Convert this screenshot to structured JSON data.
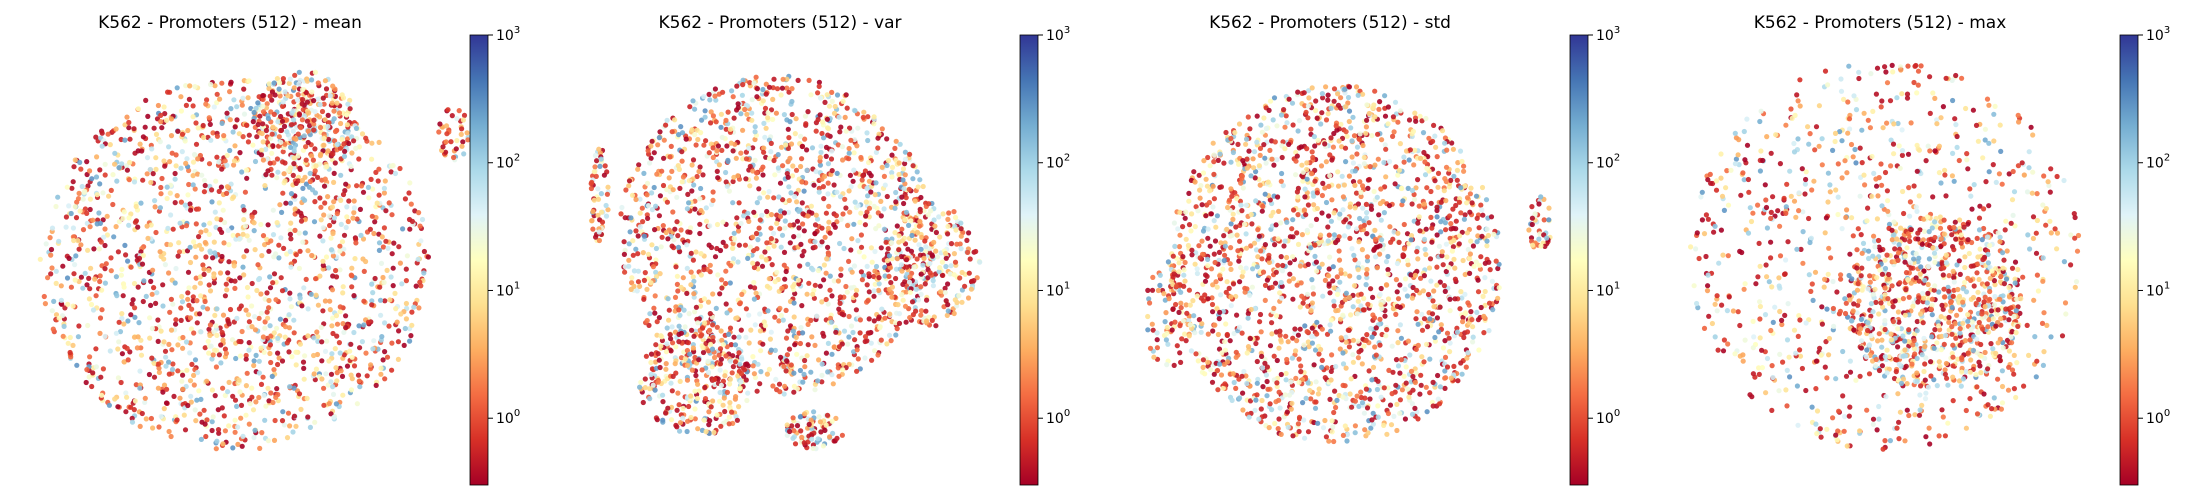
{
  "chart_data": [
    {
      "type": "scatter",
      "title": "K562 - Promoters (512) - mean",
      "colorbar": {
        "scale": "log",
        "colormap": "RdYlBu",
        "range": [
          0.3,
          1000
        ],
        "ticks": [
          {
            "value": 1,
            "base": "10",
            "exp": "0"
          },
          {
            "value": 10,
            "base": "10",
            "exp": "1"
          },
          {
            "value": 100,
            "base": "10",
            "exp": "2"
          },
          {
            "value": 1000,
            "base": "10",
            "exp": "3"
          }
        ]
      },
      "clusters": [
        {
          "cx": 0.0,
          "cy": 0.05,
          "rx": 1.0,
          "ry": 0.95,
          "count": 1700
        },
        {
          "cx": 0.35,
          "cy": -0.65,
          "rx": 0.28,
          "ry": 0.3,
          "count": 300
        },
        {
          "cx": 1.12,
          "cy": -0.62,
          "rx": 0.08,
          "ry": 0.14,
          "count": 40
        }
      ]
    },
    {
      "type": "scatter",
      "title": "K562 - Promoters (512) - var",
      "colorbar": {
        "scale": "log",
        "colormap": "RdYlBu",
        "range": [
          0.3,
          1000
        ],
        "ticks": [
          {
            "value": 1,
            "base": "10",
            "exp": "0"
          },
          {
            "value": 10,
            "base": "10",
            "exp": "1"
          },
          {
            "value": 100,
            "base": "10",
            "exp": "2"
          },
          {
            "value": 1000,
            "base": "10",
            "exp": "3"
          }
        ]
      },
      "clusters": [
        {
          "cx": -0.05,
          "cy": -0.1,
          "rx": 0.8,
          "ry": 0.82,
          "count": 1500
        },
        {
          "cx": 0.75,
          "cy": 0.05,
          "rx": 0.25,
          "ry": 0.32,
          "count": 250
        },
        {
          "cx": -0.45,
          "cy": 0.65,
          "rx": 0.3,
          "ry": 0.28,
          "count": 250
        },
        {
          "cx": 0.15,
          "cy": 0.9,
          "rx": 0.15,
          "ry": 0.1,
          "count": 80
        },
        {
          "cx": -0.95,
          "cy": -0.3,
          "rx": 0.05,
          "ry": 0.25,
          "count": 60
        }
      ]
    },
    {
      "type": "scatter",
      "title": "K562 - Promoters (512) - std",
      "colorbar": {
        "scale": "log",
        "colormap": "RdYlBu",
        "range": [
          0.3,
          1000
        ],
        "ticks": [
          {
            "value": 1,
            "base": "10",
            "exp": "0"
          },
          {
            "value": 10,
            "base": "10",
            "exp": "1"
          },
          {
            "value": 100,
            "base": "10",
            "exp": "2"
          },
          {
            "value": 1000,
            "base": "10",
            "exp": "3"
          }
        ]
      },
      "clusters": [
        {
          "cx": 0.0,
          "cy": 0.05,
          "rx": 0.85,
          "ry": 0.92,
          "count": 1900
        },
        {
          "cx": 1.05,
          "cy": -0.15,
          "rx": 0.06,
          "ry": 0.15,
          "count": 40
        },
        {
          "cx": -0.85,
          "cy": 0.3,
          "rx": 0.12,
          "ry": 0.3,
          "count": 80
        }
      ]
    },
    {
      "type": "scatter",
      "title": "K562 - Promoters (512) - max",
      "colorbar": {
        "scale": "log",
        "colormap": "RdYlBu",
        "range": [
          0.3,
          1000
        ],
        "ticks": [
          {
            "value": 1,
            "base": "10",
            "exp": "0"
          },
          {
            "value": 10,
            "base": "10",
            "exp": "1"
          },
          {
            "value": 100,
            "base": "10",
            "exp": "2"
          },
          {
            "value": 1000,
            "base": "10",
            "exp": "3"
          }
        ]
      },
      "clusters": [
        {
          "cx": 0.0,
          "cy": 0.0,
          "rx": 1.0,
          "ry": 1.0,
          "count": 900
        },
        {
          "cx": 0.25,
          "cy": 0.25,
          "rx": 0.45,
          "ry": 0.45,
          "count": 700
        }
      ]
    }
  ]
}
